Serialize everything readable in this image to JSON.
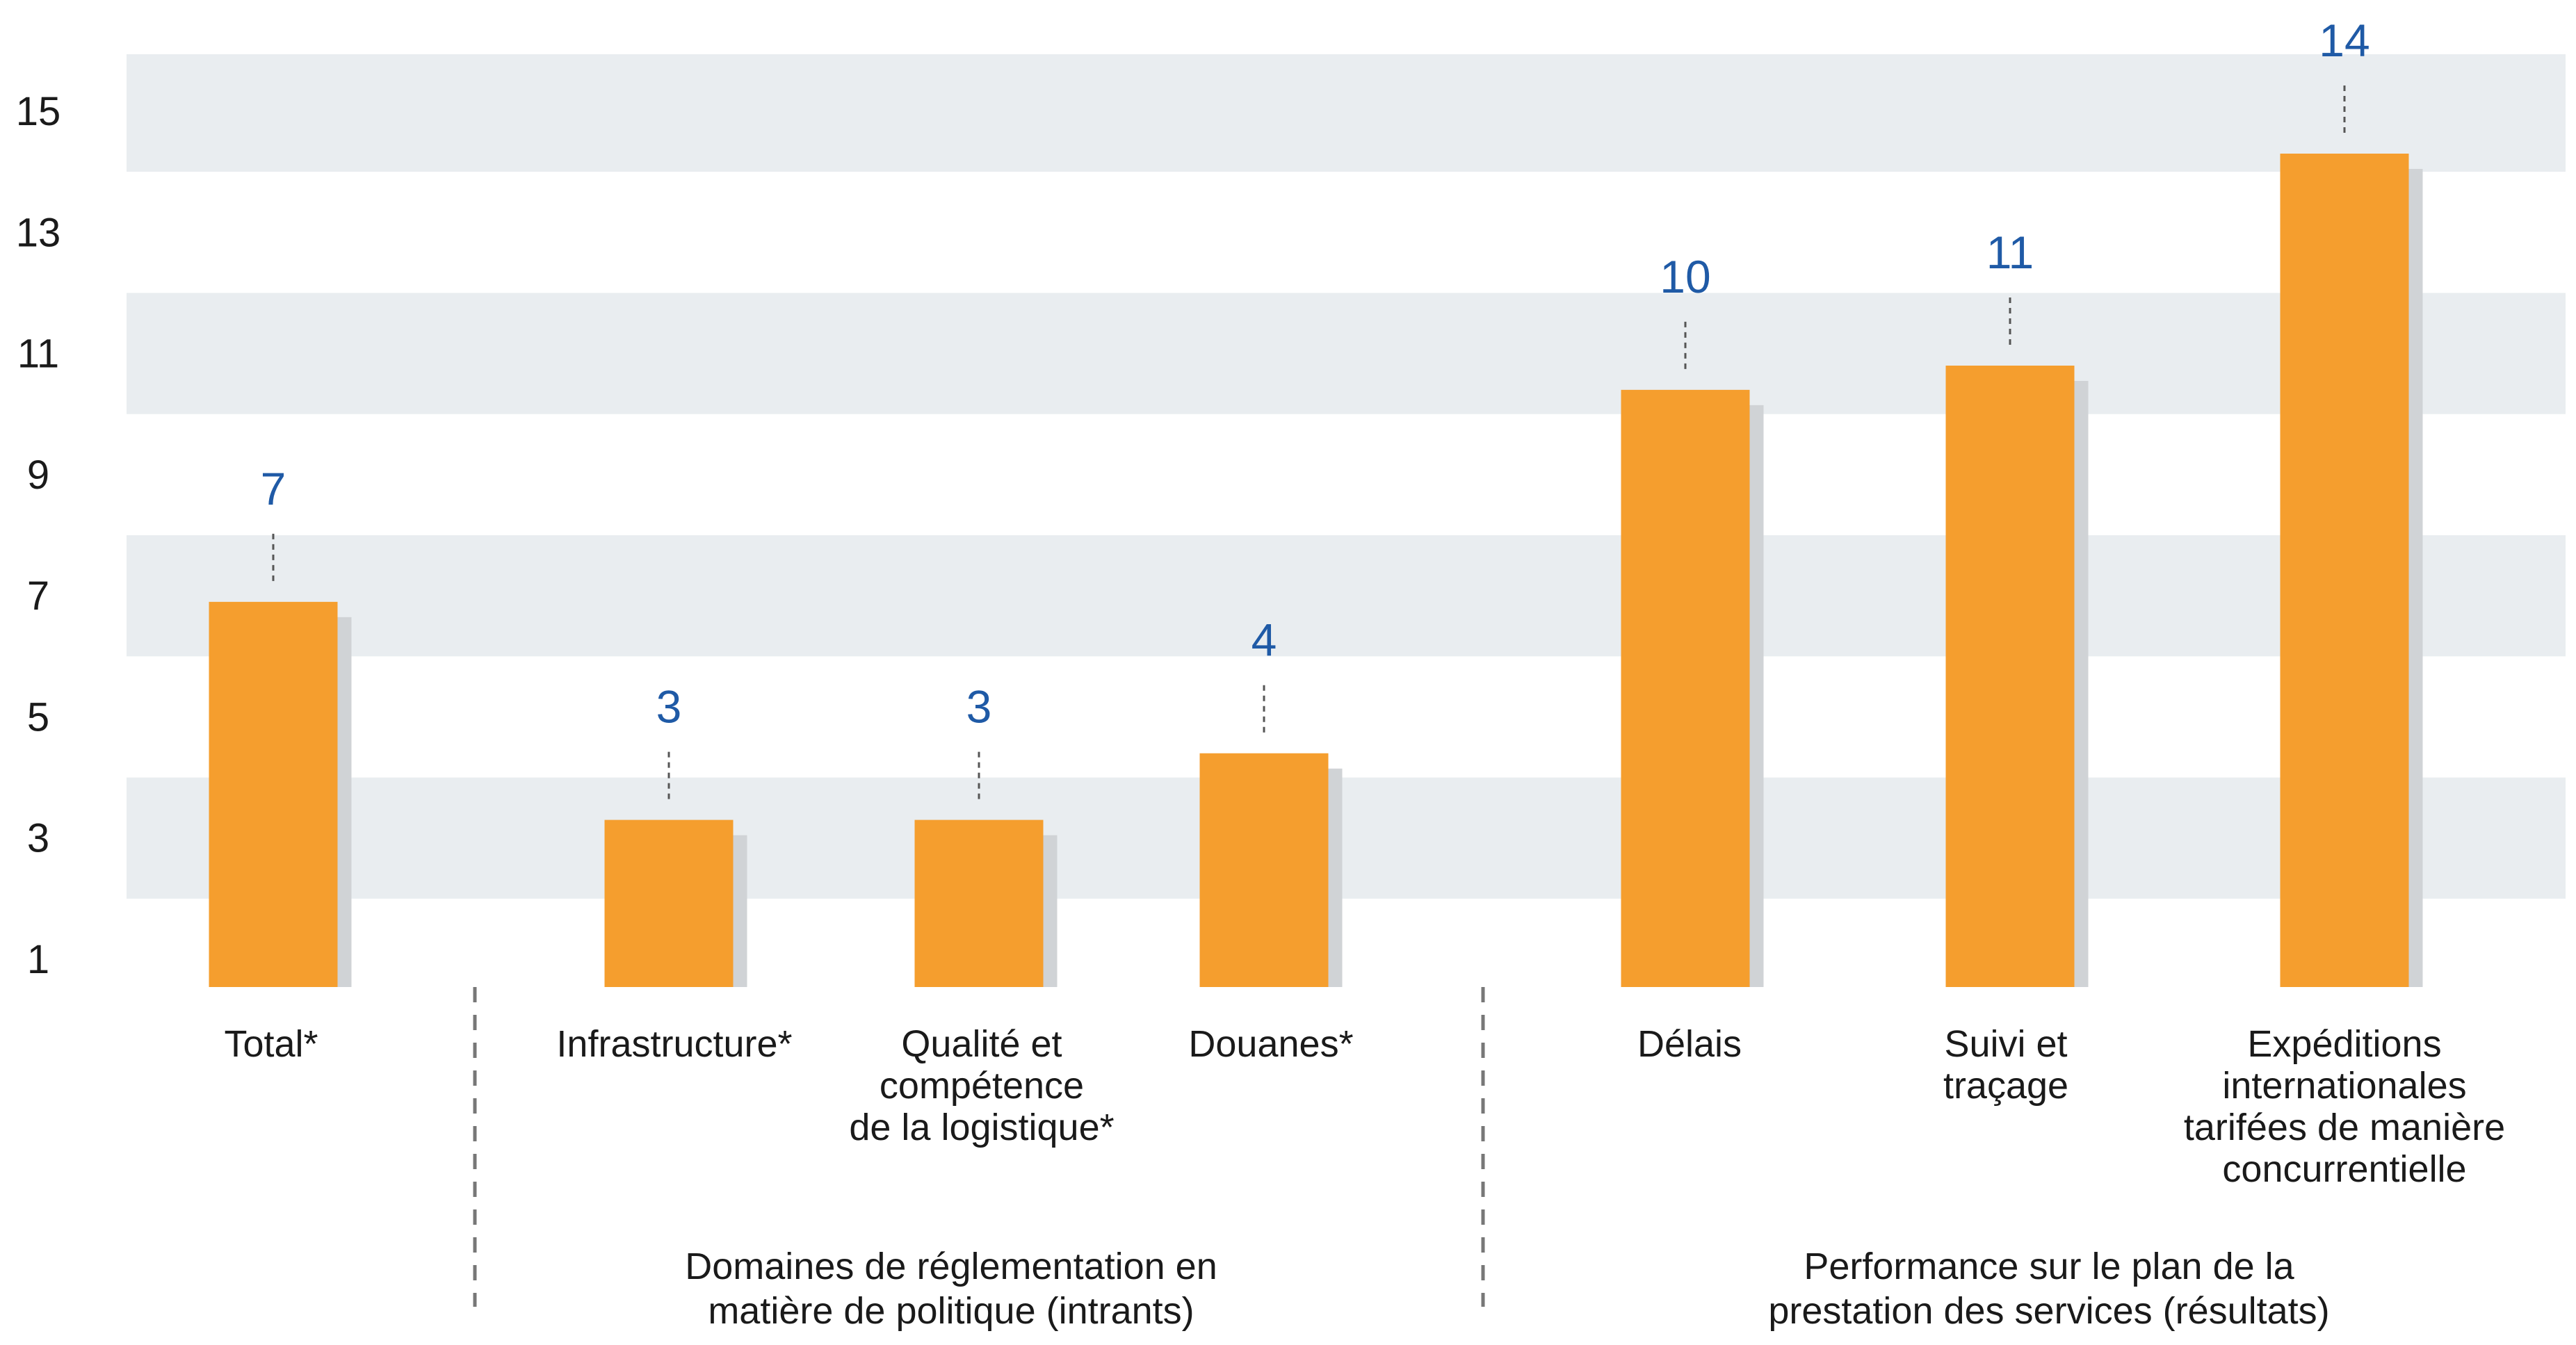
{
  "chart_data": {
    "type": "bar",
    "title": "",
    "xlabel": "",
    "ylabel": "",
    "ylim": [
      0.3,
      15.8
    ],
    "yticks": [
      1,
      3,
      5,
      7,
      9,
      11,
      13,
      15
    ],
    "grid": "alternating horizontal bands",
    "colors": {
      "bar": "#f59e2e",
      "bar_shadow": "#d0d3d6",
      "band": "#e9edf0",
      "value_label": "#1f5aa6",
      "separator": "#777777"
    },
    "categories": [
      {
        "label": "Total*",
        "lines": [
          "Total*"
        ]
      },
      {
        "label": "Infrastructure*",
        "lines": [
          "Infrastructure*"
        ]
      },
      {
        "label": "Qualité et compétence de la logistique*",
        "lines": [
          "Qualité et",
          "compétence",
          "de la logistique*"
        ]
      },
      {
        "label": "Douanes*",
        "lines": [
          "Douanes*"
        ]
      },
      {
        "label": "Délais",
        "lines": [
          "Délais"
        ]
      },
      {
        "label": "Suivi et traçage",
        "lines": [
          "Suivi et",
          "traçage"
        ]
      },
      {
        "label": "Expéditions internationales tarifées de manière concurrentielle",
        "lines": [
          "Expéditions",
          "internationales",
          "tarifées de manière",
          "concurrentielle"
        ]
      }
    ],
    "values": [
      6.9,
      3.3,
      3.3,
      4.4,
      10.4,
      10.8,
      14.3
    ],
    "data_labels": [
      "7",
      "3",
      "3",
      "4",
      "10",
      "11",
      "14"
    ],
    "groups": [
      {
        "label": "Domaines de réglementation en matière de politique (intrants)",
        "lines": [
          "Domaines de réglementation en",
          "matière de politique (intrants)"
        ],
        "categories": [
          1,
          2,
          3
        ]
      },
      {
        "label": "Performance sur le plan de la prestation des services (résultats)",
        "lines": [
          "Performance sur le plan de la",
          "prestation des services (résultats)"
        ],
        "categories": [
          4,
          5,
          6
        ]
      }
    ]
  }
}
